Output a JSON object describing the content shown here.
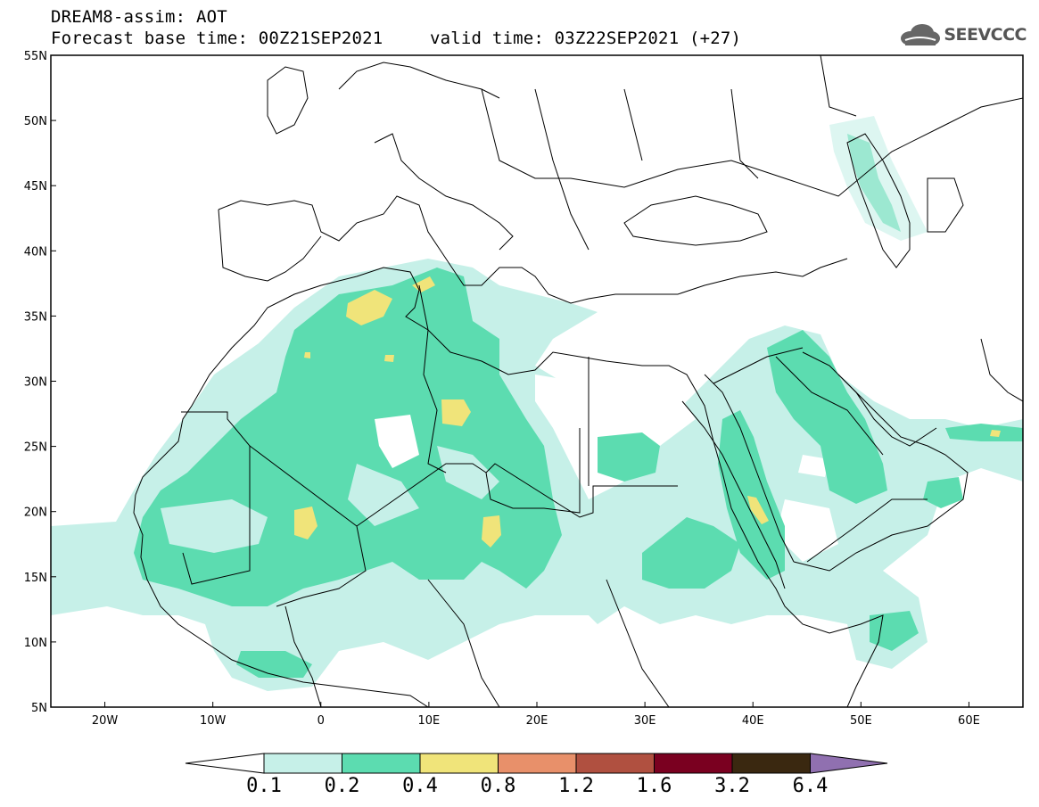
{
  "header": {
    "title": "DREAM8-assim: AOT",
    "base_time": "Forecast base time: 00Z21SEP2021",
    "valid_time": "valid time: 03Z22SEP2021 (+27)"
  },
  "logo": {
    "text": "SEEVCCC",
    "icon": "cloud-icon"
  },
  "map": {
    "lat_ticks": [
      "55N",
      "50N",
      "45N",
      "40N",
      "35N",
      "30N",
      "25N",
      "20N",
      "15N",
      "10N",
      "5N"
    ],
    "lon_ticks": [
      "20W",
      "10W",
      "0",
      "10E",
      "20E",
      "30E",
      "40E",
      "50E",
      "60E"
    ],
    "lon_range": [
      -25,
      65
    ],
    "lat_range": [
      5,
      55
    ]
  },
  "colorbar": {
    "labels": [
      "0.1",
      "0.2",
      "0.4",
      "0.8",
      "1.2",
      "1.6",
      "3.2",
      "6.4"
    ],
    "colors": [
      "#c6f0e8",
      "#5cdcb0",
      "#f0e47a",
      "#e8906a",
      "#b05040",
      "#7a0020",
      "#3a2810",
      "#9070b0"
    ]
  }
}
